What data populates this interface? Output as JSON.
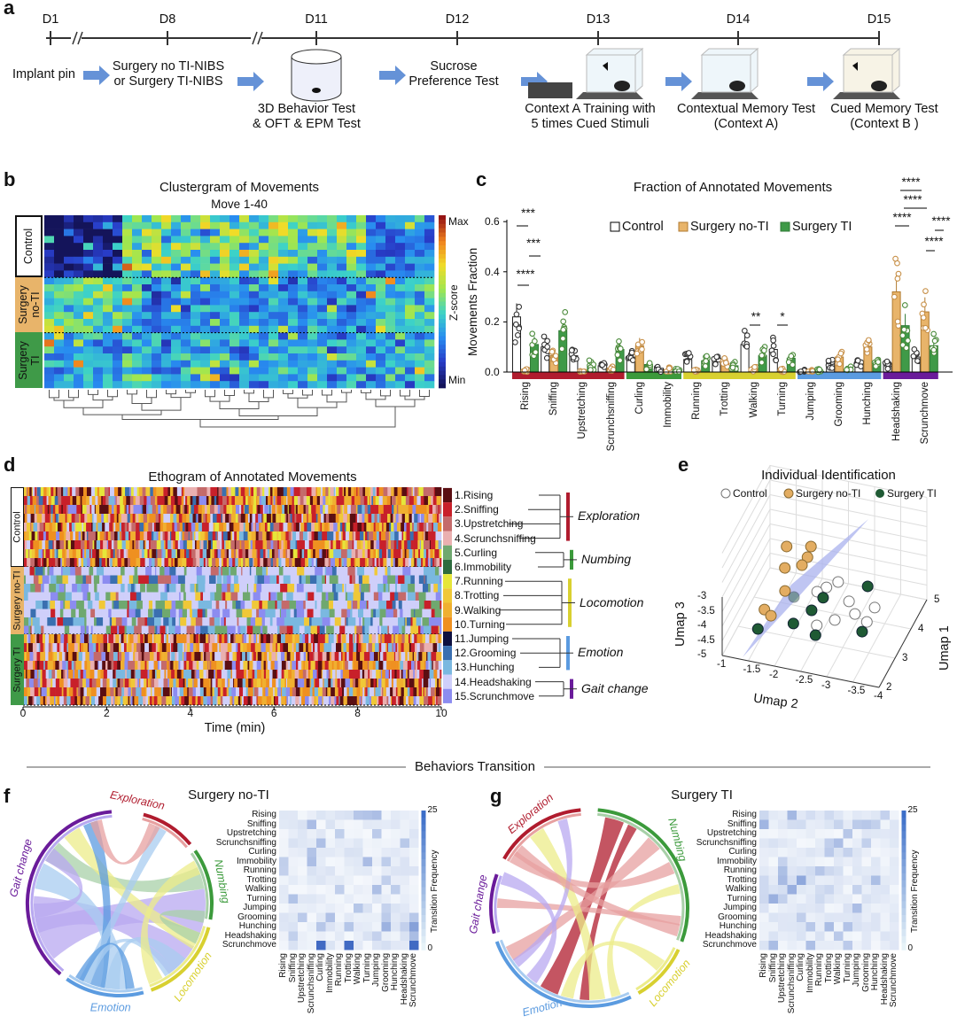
{
  "panel_a": {
    "label": "a",
    "days": [
      "D1",
      "D8",
      "D11",
      "D12",
      "D13",
      "D14",
      "D15"
    ],
    "steps": [
      "Implant pin",
      "Surgery no TI-NIBS\nor Surgery TI-NIBS",
      "3D Behavior Test\n& OFT & EPM Test",
      "Sucrose\nPreference Test",
      "Context A Training with\n5 times Cued Stimuli",
      "Contextual Memory Test\n(Context A)",
      "Cued Memory Test\n(Context B )"
    ]
  },
  "panel_b": {
    "label": "b",
    "title": "Clustergram of Movements",
    "subtitle": "Move 1-40",
    "groups": [
      "Control",
      "Surgery\nno-TI",
      "Surgery\nTI"
    ],
    "colorbar": {
      "max": "Max",
      "min": "Min",
      "label": "Z-score"
    }
  },
  "panel_c": {
    "label": "c",
    "significance": {
      "rising": [
        "****",
        "***",
        "***"
      ],
      "walking": "**",
      "turning": "*",
      "headshaking": [
        "****",
        "****",
        "****"
      ],
      "scrunchmove": [
        "****",
        "****"
      ]
    }
  },
  "panel_d": {
    "label": "d",
    "title": "Ethogram of Annotated Movements",
    "groups": [
      "Control",
      "Surgery no-TI",
      "Surgery TI"
    ],
    "xlabel": "Time (min)",
    "xticks": [
      "0",
      "2",
      "4",
      "6",
      "8",
      "10"
    ],
    "behaviors": [
      {
        "label": "1.Rising",
        "color": "#5a0e12"
      },
      {
        "label": "2.Sniffing",
        "color": "#c8202a"
      },
      {
        "label": "3.Upstretching",
        "color": "#c46a6a"
      },
      {
        "label": "4.Scrunchsniffing",
        "color": "#eab0b0"
      },
      {
        "label": "5.Curling",
        "color": "#6fa86f"
      },
      {
        "label": "6.Immobility",
        "color": "#2e6b3e"
      },
      {
        "label": "7.Running",
        "color": "#e6e63a"
      },
      {
        "label": "8.Trotting",
        "color": "#f0c838"
      },
      {
        "label": "9.Walking",
        "color": "#f0b030"
      },
      {
        "label": "10.Turning",
        "color": "#ef9020"
      },
      {
        "label": "11.Jumping",
        "color": "#0e1040"
      },
      {
        "label": "12.Grooming",
        "color": "#3a6fb0"
      },
      {
        "label": "13.Hunching",
        "color": "#7ab8e0"
      },
      {
        "label": "14.Headshaking",
        "color": "#cfcffa"
      },
      {
        "label": "15.Scrunchmove",
        "color": "#8c8cf0"
      }
    ],
    "categories": [
      {
        "name": "Exploration",
        "color": "#b01c2e"
      },
      {
        "name": "Numbing",
        "color": "#3b9a3b"
      },
      {
        "name": "Locomotion",
        "color": "#d8d030"
      },
      {
        "name": "Emotion",
        "color": "#5b9be0"
      },
      {
        "name": "Gait change",
        "color": "#6a1b9a"
      }
    ]
  },
  "panel_e": {
    "label": "e"
  },
  "section_title": "Behaviors Transition",
  "panel_f": {
    "label": "f",
    "title": "Surgery no-TI"
  },
  "panel_g": {
    "label": "g",
    "title": "Surgery TI"
  },
  "transition": {
    "rows": [
      "Rising",
      "Sniffing",
      "Upstretching",
      "Scrunchsniffing",
      "Curling",
      "Immobility",
      "Running",
      "Trotting",
      "Walking",
      "Turning",
      "Jumping",
      "Grooming",
      "Hunching",
      "Headshaking",
      "Scrunchmove"
    ],
    "colorbar_label": "Transition Frequency",
    "colorbar_max": "25",
    "colorbar_min": "0",
    "chord_groups": [
      "Exploration",
      "Numbing",
      "Locomotion",
      "Emotion",
      "Gait change"
    ]
  },
  "colors": {
    "control": "#ffffff",
    "surgery_no_ti": "#e8b46a",
    "surgery_ti": "#3f9a48",
    "scatter_no_ti": "#e3ad62",
    "scatter_ti": "#1f5a34"
  },
  "chart_data": [
    {
      "type": "bar",
      "title": "Fraction of Annotated Movements",
      "xlabel": "",
      "ylabel": "Movements Fraction",
      "ylim": [
        0,
        0.6
      ],
      "yticks": [
        "0.0",
        "0.2",
        "0.4",
        "0.6"
      ],
      "legend": "top-center",
      "categories": [
        "Rising",
        "Sniffing",
        "Upstretching",
        "Scrunchsniffing",
        "Curling",
        "Immobility",
        "Running",
        "Trotting",
        "Walking",
        "Turning",
        "Jumping",
        "Grooming",
        "Hunching",
        "Headshaking",
        "Scrunchmove"
      ],
      "series": [
        {
          "name": "Control",
          "values": [
            0.22,
            0.1,
            0.065,
            0.025,
            0.06,
            0.015,
            0.05,
            0.045,
            0.11,
            0.09,
            0.003,
            0.035,
            0.04,
            0.035,
            0.06
          ]
        },
        {
          "name": "Surgery no-TI",
          "values": [
            0.005,
            0.065,
            0.002,
            0.015,
            0.105,
            0.01,
            0.005,
            0.035,
            0.01,
            0.005,
            0.002,
            0.06,
            0.1,
            0.32,
            0.24
          ]
        },
        {
          "name": "Surgery TI",
          "values": [
            0.11,
            0.165,
            0.03,
            0.09,
            0.03,
            0.003,
            0.045,
            0.025,
            0.065,
            0.055,
            0.002,
            0.01,
            0.04,
            0.185,
            0.105
          ]
        }
      ]
    },
    {
      "type": "scatter",
      "title": "Individual Identification",
      "xlabel": "Umap 2",
      "ylabel": "Umap 1",
      "zlabel": "Umap 3",
      "xticks": [
        "-1",
        "-1.5",
        "-2",
        "-2.5",
        "-3",
        "-3.5",
        "-4"
      ],
      "yticks": [
        "2",
        "3",
        "4",
        "5"
      ],
      "zticks": [
        "-3",
        "-3.5",
        "-4",
        "-4.5",
        "-5"
      ],
      "legend": "top",
      "series": [
        {
          "name": "Control",
          "points": [
            [
              4.09,
              -2.58,
              -4
            ],
            [
              3.85,
              -2.43,
              -4
            ],
            [
              3.66,
              -2.31,
              -4
            ],
            [
              3.56,
              -2.95,
              -4
            ],
            [
              3.21,
              -3.17,
              -4
            ],
            [
              3.53,
              -3.45,
              -4
            ],
            [
              3.04,
              -3.45,
              -4
            ],
            [
              2.62,
              -2.62,
              -4
            ],
            [
              2.9,
              -2.88,
              -4
            ]
          ]
        },
        {
          "name": "Surgery no-TI",
          "points": [
            [
              4.86,
              -1.36,
              -4
            ],
            [
              5.01,
              -1.78,
              -4
            ],
            [
              4.66,
              -1.82,
              -4
            ],
            [
              4.38,
              -1.8,
              -4
            ],
            [
              4.19,
              -1.53,
              -4
            ],
            [
              3.48,
              -1.75,
              -4
            ],
            [
              2.78,
              -1.57,
              -4
            ],
            [
              2.63,
              -1.74,
              -4
            ]
          ]
        },
        {
          "name": "Surgery TI",
          "points": [
            [
              4.14,
              -3.13,
              -4
            ],
            [
              3.51,
              -2.47,
              -4
            ],
            [
              3.05,
              -2.39,
              -4
            ],
            [
              2.53,
              -2.2,
              -4
            ],
            [
              2.14,
              -1.64,
              -4
            ],
            [
              2.31,
              -2.69,
              -4
            ],
            [
              2.71,
              -3.46,
              -4
            ],
            [
              3.35,
              -1.96,
              -4
            ]
          ]
        }
      ]
    }
  ]
}
